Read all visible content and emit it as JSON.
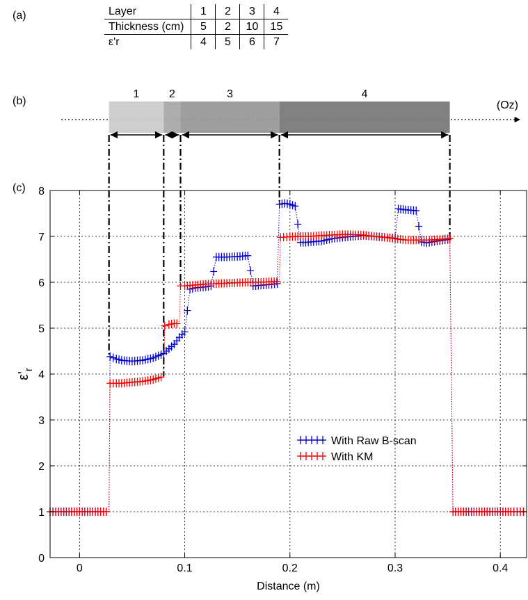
{
  "panel_labels": {
    "a": "(a)",
    "b": "(b)",
    "c": "(c)"
  },
  "layer_table": {
    "row_headers": [
      "Layer",
      "Thickness (cm)",
      "ε'r"
    ],
    "layers": [
      "1",
      "2",
      "3",
      "4"
    ],
    "thickness": [
      "5",
      "2",
      "10",
      "15"
    ],
    "eps": [
      "4",
      "5",
      "6",
      "7"
    ]
  },
  "layer_diagram": {
    "axis_label": "(Oz)",
    "labels": [
      "1",
      "2",
      "3",
      "4"
    ],
    "boundaries_m": [
      0.028,
      0.08,
      0.096,
      0.19,
      0.352
    ],
    "colors": [
      "#cbcbcb",
      "#a9a9a9",
      "#999999",
      "#7a7a7a"
    ]
  },
  "chart_data": {
    "type": "line",
    "xlabel": "Distance (m)",
    "ylabel": "ε'r",
    "xlim": [
      -0.028,
      0.425
    ],
    "ylim": [
      0,
      8
    ],
    "xticks": [
      0,
      0.1,
      0.2,
      0.3,
      0.4
    ],
    "xtick_labels": [
      "0",
      "0.1",
      "0.2",
      "0.3",
      "0.4"
    ],
    "yticks": [
      0,
      1,
      2,
      3,
      4,
      5,
      6,
      7,
      8
    ],
    "grid": true,
    "legend_position": "center-right",
    "series": [
      {
        "name": "With Raw B-scan",
        "color": "#0000cc",
        "x": [
          -0.028,
          -0.02,
          -0.01,
          0,
          0.01,
          0.02,
          0.028,
          0.029,
          0.035,
          0.04,
          0.05,
          0.06,
          0.07,
          0.08,
          0.085,
          0.09,
          0.095,
          0.1,
          0.105,
          0.11,
          0.12,
          0.125,
          0.13,
          0.14,
          0.15,
          0.16,
          0.165,
          0.17,
          0.18,
          0.188,
          0.19,
          0.195,
          0.2,
          0.205,
          0.21,
          0.215,
          0.22,
          0.23,
          0.24,
          0.25,
          0.26,
          0.27,
          0.28,
          0.29,
          0.3,
          0.303,
          0.31,
          0.32,
          0.325,
          0.33,
          0.34,
          0.35,
          0.352,
          0.355,
          0.36,
          0.37,
          0.38,
          0.39,
          0.4,
          0.41,
          0.425
        ],
        "y": [
          1,
          1,
          1,
          1,
          1,
          1,
          1,
          4.38,
          4.33,
          4.3,
          4.28,
          4.3,
          4.35,
          4.45,
          4.55,
          4.65,
          4.8,
          4.92,
          5.85,
          5.88,
          5.9,
          5.92,
          6.55,
          6.55,
          6.56,
          6.58,
          5.92,
          5.93,
          5.95,
          5.97,
          7.7,
          7.72,
          7.7,
          7.66,
          6.87,
          6.87,
          6.88,
          6.9,
          6.95,
          6.98,
          7.0,
          7.02,
          7.0,
          6.98,
          6.96,
          7.6,
          7.58,
          7.56,
          6.88,
          6.86,
          6.9,
          6.93,
          6.95,
          1,
          1,
          1,
          1,
          1,
          1,
          1,
          1
        ]
      },
      {
        "name": "With KM",
        "color": "#ee0000",
        "x": [
          -0.028,
          -0.02,
          -0.01,
          0,
          0.01,
          0.02,
          0.028,
          0.029,
          0.035,
          0.04,
          0.05,
          0.06,
          0.07,
          0.08,
          0.081,
          0.085,
          0.09,
          0.095,
          0.096,
          0.1,
          0.11,
          0.12,
          0.13,
          0.14,
          0.15,
          0.16,
          0.17,
          0.18,
          0.19,
          0.191,
          0.2,
          0.21,
          0.22,
          0.23,
          0.24,
          0.25,
          0.26,
          0.27,
          0.28,
          0.29,
          0.3,
          0.31,
          0.32,
          0.33,
          0.34,
          0.35,
          0.352,
          0.355,
          0.36,
          0.37,
          0.38,
          0.39,
          0.4,
          0.41,
          0.425
        ],
        "y": [
          1,
          1,
          1,
          1,
          1,
          1,
          1,
          3.8,
          3.8,
          3.8,
          3.82,
          3.84,
          3.88,
          3.95,
          5.05,
          5.08,
          5.1,
          5.1,
          5.92,
          5.92,
          5.94,
          5.96,
          5.97,
          5.98,
          5.99,
          6.0,
          6.0,
          6.01,
          6.02,
          6.98,
          6.99,
          7.0,
          7.0,
          7.02,
          7.03,
          7.04,
          7.04,
          7.03,
          7.0,
          6.98,
          6.95,
          6.92,
          6.92,
          6.92,
          6.93,
          6.95,
          6.95,
          1,
          1,
          1,
          1,
          1,
          1,
          1,
          1
        ]
      }
    ]
  }
}
